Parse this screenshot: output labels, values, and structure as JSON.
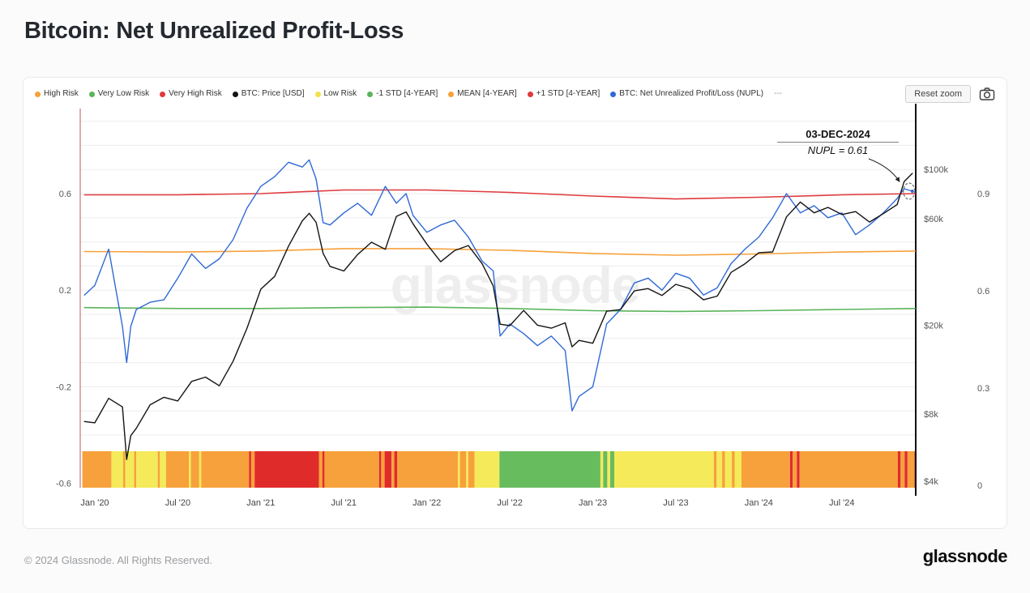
{
  "page": {
    "title": "Bitcoin: Net Unrealized Profit-Loss",
    "watermark": "glassnode",
    "footer": {
      "copyright": "© 2024 Glassnode. All Rights Reserved.",
      "brand": "glassnode"
    }
  },
  "toolbar": {
    "reset_zoom": "Reset zoom",
    "camera_icon": "camera-icon"
  },
  "legend": [
    {
      "label": "High Risk",
      "color": "#F6A13B"
    },
    {
      "label": "Very Low Risk",
      "color": "#5BB45C"
    },
    {
      "label": "Very High Risk",
      "color": "#E0393E"
    },
    {
      "label": "BTC: Price [USD]",
      "color": "#141414"
    },
    {
      "label": "Low Risk",
      "color": "#F2E24A"
    },
    {
      "label": "-1 STD [4-YEAR]",
      "color": "#5BB45C"
    },
    {
      "label": "MEAN [4-YEAR]",
      "color": "#F6A13B"
    },
    {
      "label": "+1 STD [4-YEAR]",
      "color": "#E0393E"
    },
    {
      "label": "BTC: Net Unrealized Profit/Loss (NUPL)",
      "color": "#3069D6"
    },
    {
      "label": "---",
      "color": null
    }
  ],
  "annotation": {
    "date": "03-DEC-2024",
    "label": "NUPL = 0.61"
  },
  "chart_data": {
    "type": "line",
    "title": "Bitcoin: Net Unrealized Profit-Loss",
    "x_axis": {
      "unit": "months since Jan 2020",
      "tick_months": [
        0,
        6,
        12,
        18,
        24,
        30,
        36,
        42,
        48,
        54
      ],
      "tick_labels": [
        "Jan '20",
        "Jul '20",
        "Jan '21",
        "Jul '21",
        "Jan '22",
        "Jul '22",
        "Jan '23",
        "Jul '23",
        "Jan '24",
        "Jul '24"
      ]
    },
    "grid": {
      "from": -0.4,
      "to": 0.9,
      "step": 0.1
    },
    "axes": {
      "nupl_left": {
        "ticks": [
          0.6,
          0.2,
          -0.2,
          -0.6
        ],
        "range": [
          -0.72,
          0.94
        ]
      },
      "price_right": {
        "scale": "log",
        "ticks": [
          {
            "label": "$100k",
            "value": 100000
          },
          {
            "label": "$60k",
            "value": 60000
          },
          {
            "label": "$20k",
            "value": 20000
          },
          {
            "label": "$8k",
            "value": 8000
          },
          {
            "label": "$4k",
            "value": 4000
          }
        ]
      },
      "risk_far_right": {
        "ticks": [
          0.9,
          0.6,
          0.3,
          0
        ]
      }
    },
    "series": [
      {
        "name": "+1 STD [4-YEAR]",
        "axis": "nupl",
        "color": "#E0393E",
        "width": 1.6,
        "x": [
          -0.75,
          6,
          12,
          18,
          24,
          30,
          36,
          42,
          48,
          54,
          59.3
        ],
        "values": [
          0.595,
          0.595,
          0.6,
          0.615,
          0.615,
          0.605,
          0.59,
          0.578,
          0.585,
          0.595,
          0.6
        ]
      },
      {
        "name": "MEAN [4-YEAR]",
        "axis": "nupl",
        "color": "#F6A13B",
        "width": 1.6,
        "x": [
          -0.75,
          6,
          12,
          18,
          24,
          30,
          36,
          42,
          48,
          54,
          59.3
        ],
        "values": [
          0.36,
          0.358,
          0.362,
          0.372,
          0.372,
          0.365,
          0.352,
          0.345,
          0.35,
          0.358,
          0.362
        ]
      },
      {
        "name": "-1 STD [4-YEAR]",
        "axis": "nupl",
        "color": "#5BB45C",
        "width": 1.6,
        "x": [
          -0.75,
          6,
          12,
          18,
          24,
          30,
          36,
          42,
          48,
          54,
          59.3
        ],
        "values": [
          0.128,
          0.124,
          0.124,
          0.128,
          0.13,
          0.124,
          0.115,
          0.112,
          0.115,
          0.12,
          0.124
        ]
      },
      {
        "name": "BTC: Net Unrealized Profit/Loss (NUPL)",
        "axis": "nupl",
        "color": "#3069D6",
        "width": 1.4,
        "x": [
          -0.75,
          0,
          1,
          2,
          2.3,
          2.6,
          3,
          4,
          5,
          6,
          7,
          8,
          9,
          10,
          11,
          12,
          13,
          14,
          15,
          15.5,
          16,
          16.5,
          17,
          18,
          19,
          20,
          21,
          21.8,
          22.5,
          23,
          24,
          25,
          26,
          27,
          28,
          28.8,
          29.3,
          30,
          31,
          32,
          33,
          34,
          34.5,
          35,
          36,
          37,
          38,
          39,
          40,
          41,
          42,
          43,
          44,
          45,
          46,
          47,
          48,
          49,
          50,
          51,
          52,
          53,
          54,
          55,
          56,
          57,
          58,
          58.5,
          59.1
        ],
        "values": [
          0.18,
          0.22,
          0.37,
          0.05,
          -0.1,
          0.05,
          0.12,
          0.15,
          0.16,
          0.25,
          0.35,
          0.29,
          0.33,
          0.41,
          0.54,
          0.63,
          0.67,
          0.73,
          0.71,
          0.74,
          0.66,
          0.48,
          0.47,
          0.52,
          0.56,
          0.51,
          0.63,
          0.56,
          0.6,
          0.51,
          0.44,
          0.47,
          0.49,
          0.42,
          0.32,
          0.28,
          0.01,
          0.06,
          0.02,
          -0.03,
          0.01,
          -0.05,
          -0.3,
          -0.24,
          -0.2,
          0.06,
          0.12,
          0.23,
          0.25,
          0.2,
          0.27,
          0.25,
          0.18,
          0.21,
          0.31,
          0.37,
          0.42,
          0.5,
          0.6,
          0.52,
          0.55,
          0.5,
          0.52,
          0.43,
          0.47,
          0.52,
          0.58,
          0.62,
          0.61
        ]
      },
      {
        "name": "BTC: Price [USD]",
        "axis": "price",
        "color": "#141414",
        "width": 1.4,
        "x": [
          -0.75,
          0,
          1,
          2,
          2.3,
          2.6,
          3,
          4,
          5,
          6,
          7,
          8,
          9,
          10,
          11,
          12,
          13,
          14,
          15,
          15.5,
          16,
          16.5,
          17,
          18,
          19,
          20,
          21,
          21.8,
          22.5,
          23,
          24,
          25,
          26,
          27,
          28,
          28.8,
          29.3,
          30,
          31,
          32,
          33,
          34,
          34.5,
          35,
          36,
          37,
          38,
          39,
          40,
          41,
          42,
          43,
          44,
          45,
          46,
          47,
          48,
          49,
          50,
          51,
          52,
          53,
          54,
          55,
          56,
          57,
          58,
          58.5,
          59.1
        ],
        "values": [
          7400,
          7300,
          9400,
          8600,
          5000,
          6400,
          6900,
          8800,
          9500,
          9150,
          11200,
          11700,
          10700,
          13800,
          19400,
          29000,
          33100,
          45200,
          58800,
          63500,
          57800,
          42000,
          36700,
          35000,
          41500,
          47100,
          43800,
          61500,
          64400,
          57000,
          46200,
          38500,
          43200,
          45500,
          37700,
          30000,
          20200,
          19900,
          23300,
          20000,
          19400,
          20500,
          16000,
          17100,
          16600,
          23100,
          23500,
          28500,
          29200,
          27200,
          30500,
          29200,
          26000,
          27000,
          34500,
          37700,
          42300,
          42600,
          61200,
          71300,
          63800,
          67500,
          62700,
          64600,
          58000,
          63300,
          69500,
          88000,
          95900
        ]
      }
    ],
    "risk_band": {
      "colors": {
        "o": "#F6A13B",
        "y": "#F5EA5A",
        "r": "#E02B2B",
        "g": "#67BC5E"
      },
      "legend_meaning": {
        "o": "High Risk",
        "y": "Low Risk",
        "r": "Very High Risk",
        "g": "Very Low Risk"
      },
      "segments": [
        [
          -0.9,
          1.2,
          "o"
        ],
        [
          1.2,
          2.05,
          "y"
        ],
        [
          2.05,
          2.2,
          "o"
        ],
        [
          2.2,
          2.85,
          "y"
        ],
        [
          2.85,
          3.0,
          "o"
        ],
        [
          3.0,
          4.55,
          "y"
        ],
        [
          4.55,
          4.7,
          "o"
        ],
        [
          4.7,
          5.15,
          "y"
        ],
        [
          5.15,
          6.8,
          "o"
        ],
        [
          6.8,
          6.95,
          "y"
        ],
        [
          6.95,
          7.55,
          "o"
        ],
        [
          7.55,
          7.7,
          "y"
        ],
        [
          7.7,
          11.15,
          "o"
        ],
        [
          11.15,
          11.3,
          "r"
        ],
        [
          11.3,
          11.55,
          "o"
        ],
        [
          11.55,
          16.2,
          "r"
        ],
        [
          16.2,
          16.45,
          "o"
        ],
        [
          16.45,
          16.6,
          "r"
        ],
        [
          16.6,
          20.55,
          "o"
        ],
        [
          20.55,
          20.7,
          "r"
        ],
        [
          20.7,
          20.95,
          "o"
        ],
        [
          20.95,
          21.45,
          "r"
        ],
        [
          21.45,
          21.65,
          "o"
        ],
        [
          21.65,
          21.85,
          "r"
        ],
        [
          21.85,
          26.25,
          "o"
        ],
        [
          26.25,
          26.4,
          "y"
        ],
        [
          26.4,
          26.85,
          "o"
        ],
        [
          26.85,
          27.0,
          "y"
        ],
        [
          27.0,
          27.45,
          "o"
        ],
        [
          27.45,
          29.25,
          "y"
        ],
        [
          29.25,
          36.55,
          "g"
        ],
        [
          36.55,
          36.75,
          "y"
        ],
        [
          36.75,
          37.05,
          "g"
        ],
        [
          37.05,
          37.25,
          "y"
        ],
        [
          37.25,
          37.55,
          "g"
        ],
        [
          37.55,
          44.75,
          "y"
        ],
        [
          44.75,
          44.95,
          "o"
        ],
        [
          44.95,
          45.35,
          "y"
        ],
        [
          45.35,
          45.55,
          "o"
        ],
        [
          45.55,
          46.05,
          "y"
        ],
        [
          46.05,
          46.25,
          "o"
        ],
        [
          46.25,
          46.75,
          "y"
        ],
        [
          46.75,
          50.25,
          "o"
        ],
        [
          50.25,
          50.45,
          "r"
        ],
        [
          50.45,
          50.75,
          "o"
        ],
        [
          50.75,
          50.95,
          "r"
        ],
        [
          50.95,
          58.05,
          "o"
        ],
        [
          58.05,
          58.25,
          "r"
        ],
        [
          58.25,
          58.55,
          "o"
        ],
        [
          58.55,
          58.75,
          "r"
        ],
        [
          58.75,
          59.25,
          "o"
        ],
        [
          59.25,
          59.35,
          "r"
        ]
      ]
    }
  }
}
